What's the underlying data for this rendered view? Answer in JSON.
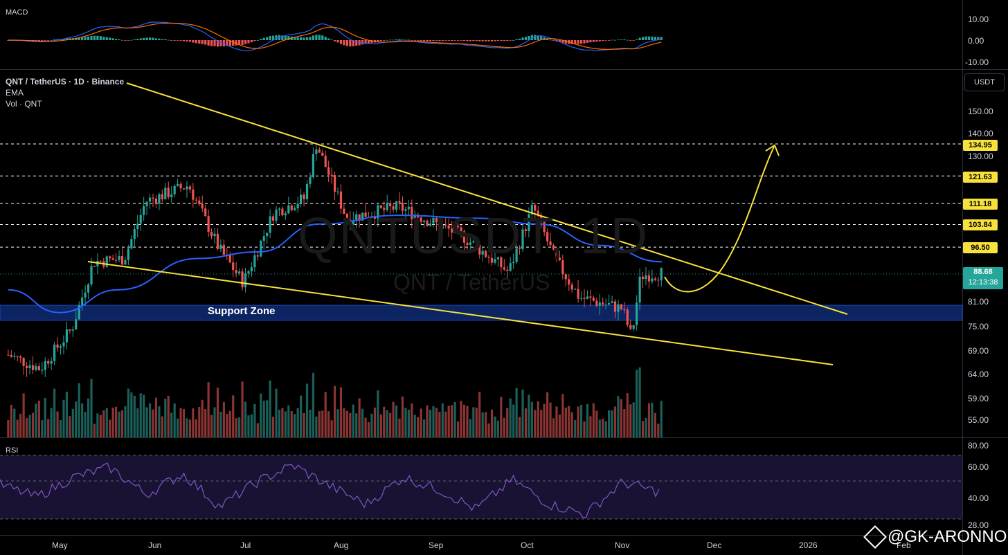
{
  "header": {
    "symbol_line": "QNT / TetherUS · 1D · Binance",
    "ema_label": "EMA",
    "vol_label": "Vol · QNT",
    "macd_label": "MACD",
    "rsi_label": "RSI",
    "currency_button": "USDT"
  },
  "watermark": {
    "symbol": "QNTUSDT, 1D",
    "pair": "QNT / TetherUS"
  },
  "annotations": {
    "support_zone": "Support Zone",
    "credit": "@GK-ARONNO"
  },
  "price_axis": {
    "ticks": [
      "150.00",
      "140.00",
      "130.00",
      "81.00",
      "75.00",
      "69.00",
      "64.00",
      "59.00",
      "55.00"
    ],
    "levels": [
      {
        "label": "134.95",
        "value": 134.95
      },
      {
        "label": "121.63",
        "value": 121.63
      },
      {
        "label": "111.18",
        "value": 111.18
      },
      {
        "label": "103.84",
        "value": 103.84
      },
      {
        "label": "96.50",
        "value": 96.5
      }
    ],
    "last_price": "88.68",
    "countdown": "12:13:38"
  },
  "macd_axis": {
    "ticks": [
      "10.00",
      "0.00",
      "-10.00"
    ]
  },
  "rsi_axis": {
    "ticks": [
      "80.00",
      "60.00",
      "40.00",
      "28.00"
    ]
  },
  "time_axis": {
    "ticks": [
      "May",
      "Jun",
      "Jul",
      "Aug",
      "Sep",
      "Oct",
      "Nov",
      "Dec",
      "2026",
      "Feb"
    ]
  },
  "colors": {
    "up": "#26a69a",
    "down": "#ef5350",
    "ema": "#2962ff",
    "trendline": "#f7e13c",
    "support_zone": "#0c2461",
    "rsi": "#7e57c2",
    "macd_line": "#2962ff",
    "signal_line": "#ff6d00"
  },
  "chart_data": {
    "type": "candlestick",
    "title": "QNT / TetherUS · 1D · Binance",
    "xlabel": "",
    "ylabel": "",
    "scale": "log",
    "ylim": [
      52,
      165
    ],
    "support_zone": [
      76,
      80
    ],
    "key_levels": [
      134.95,
      121.63,
      111.18,
      103.84,
      96.5
    ],
    "last_price": 88.68,
    "ohlc_keypoints": [
      {
        "x": "Apr 15",
        "close": 68
      },
      {
        "x": "Apr 25",
        "close": 65
      },
      {
        "x": "May 5",
        "close": 74
      },
      {
        "x": "May 12",
        "close": 92
      },
      {
        "x": "May 22",
        "close": 93
      },
      {
        "x": "May 29",
        "close": 112
      },
      {
        "x": "Jun 12",
        "close": 118
      },
      {
        "x": "Jun 22",
        "close": 96
      },
      {
        "x": "Jun 30",
        "close": 86
      },
      {
        "x": "Jul 10",
        "close": 108
      },
      {
        "x": "Jul 20",
        "close": 113
      },
      {
        "x": "Jul 24",
        "close": 135
      },
      {
        "x": "Aug 3",
        "close": 106
      },
      {
        "x": "Aug 20",
        "close": 110
      },
      {
        "x": "Sep 10",
        "close": 100
      },
      {
        "x": "Sep 25",
        "close": 89
      },
      {
        "x": "Oct 3",
        "close": 110
      },
      {
        "x": "Oct 10",
        "close": 93
      },
      {
        "x": "Oct 18",
        "close": 82
      },
      {
        "x": "Nov 1",
        "close": 79
      },
      {
        "x": "Nov 4",
        "close": 72
      },
      {
        "x": "Nov 7",
        "close": 88
      },
      {
        "x": "Nov 14",
        "close": 88.68
      }
    ],
    "ema": [
      {
        "x": "Apr 15",
        "y": 84
      },
      {
        "x": "May 1",
        "y": 78
      },
      {
        "x": "May 20",
        "y": 84
      },
      {
        "x": "Jun 15",
        "y": 93
      },
      {
        "x": "Jul 5",
        "y": 95
      },
      {
        "x": "Jul 25",
        "y": 104
      },
      {
        "x": "Aug 20",
        "y": 107
      },
      {
        "x": "Sep 15",
        "y": 106
      },
      {
        "x": "Oct 5",
        "y": 104
      },
      {
        "x": "Oct 25",
        "y": 97
      },
      {
        "x": "Nov 14",
        "y": 92
      }
    ],
    "rsi_keypoints": [
      56,
      46,
      62,
      70,
      48,
      65,
      38,
      58,
      72,
      55,
      40,
      62,
      52,
      36,
      60,
      40,
      32,
      58,
      50
    ],
    "macd": {
      "range": [
        -12,
        14
      ]
    }
  }
}
